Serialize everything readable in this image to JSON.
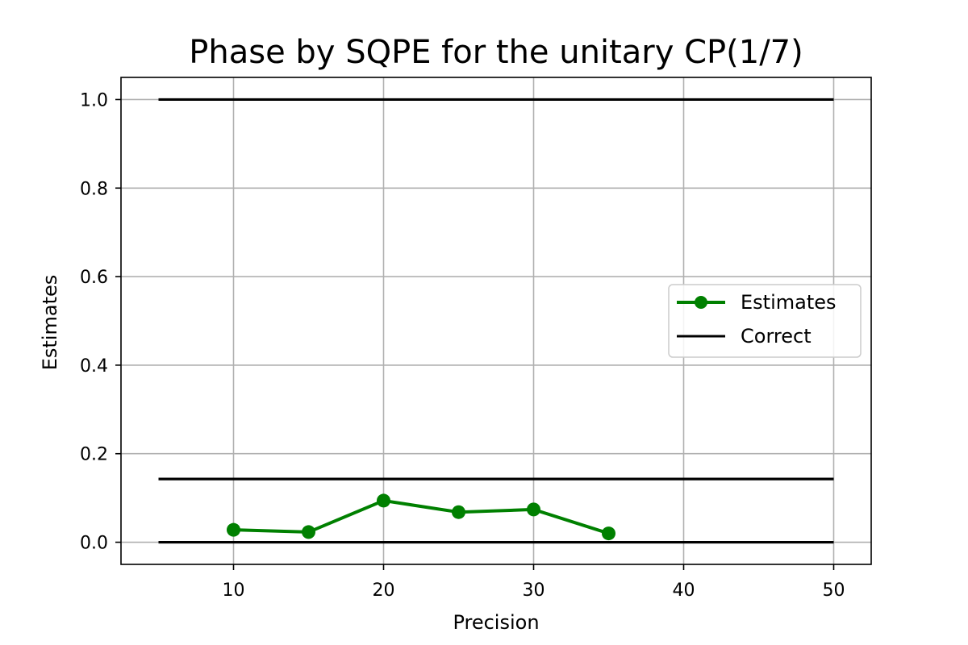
{
  "chart_data": {
    "type": "line",
    "title": "Phase by SQPE for the unitary CP(1/7)",
    "xlabel": "Precision",
    "ylabel": "Estimates",
    "xlim": [
      2.5,
      52.5
    ],
    "ylim": [
      -0.05,
      1.05
    ],
    "xticks": [
      10,
      20,
      30,
      40,
      50
    ],
    "yticks": [
      0.0,
      0.2,
      0.4,
      0.6,
      0.8,
      1.0
    ],
    "xtick_labels": [
      "10",
      "20",
      "30",
      "40",
      "50"
    ],
    "ytick_labels": [
      "0.0",
      "0.2",
      "0.4",
      "0.6",
      "0.8",
      "1.0"
    ],
    "grid": true,
    "legend_position": "center-right",
    "series": [
      {
        "name": "Estimates",
        "color": "#008000",
        "marker": "circle",
        "x": [
          10,
          15,
          20,
          25,
          30,
          35
        ],
        "y": [
          0.028,
          0.023,
          0.094,
          0.068,
          0.074,
          0.02
        ]
      },
      {
        "name": "Correct",
        "color": "#000000",
        "marker": "none",
        "hlines": [
          {
            "y": 1.0,
            "xmin": 5,
            "xmax": 50
          },
          {
            "y": 0.142857,
            "xmin": 5,
            "xmax": 50
          },
          {
            "y": 0.0,
            "xmin": 5,
            "xmax": 50
          }
        ]
      }
    ]
  }
}
